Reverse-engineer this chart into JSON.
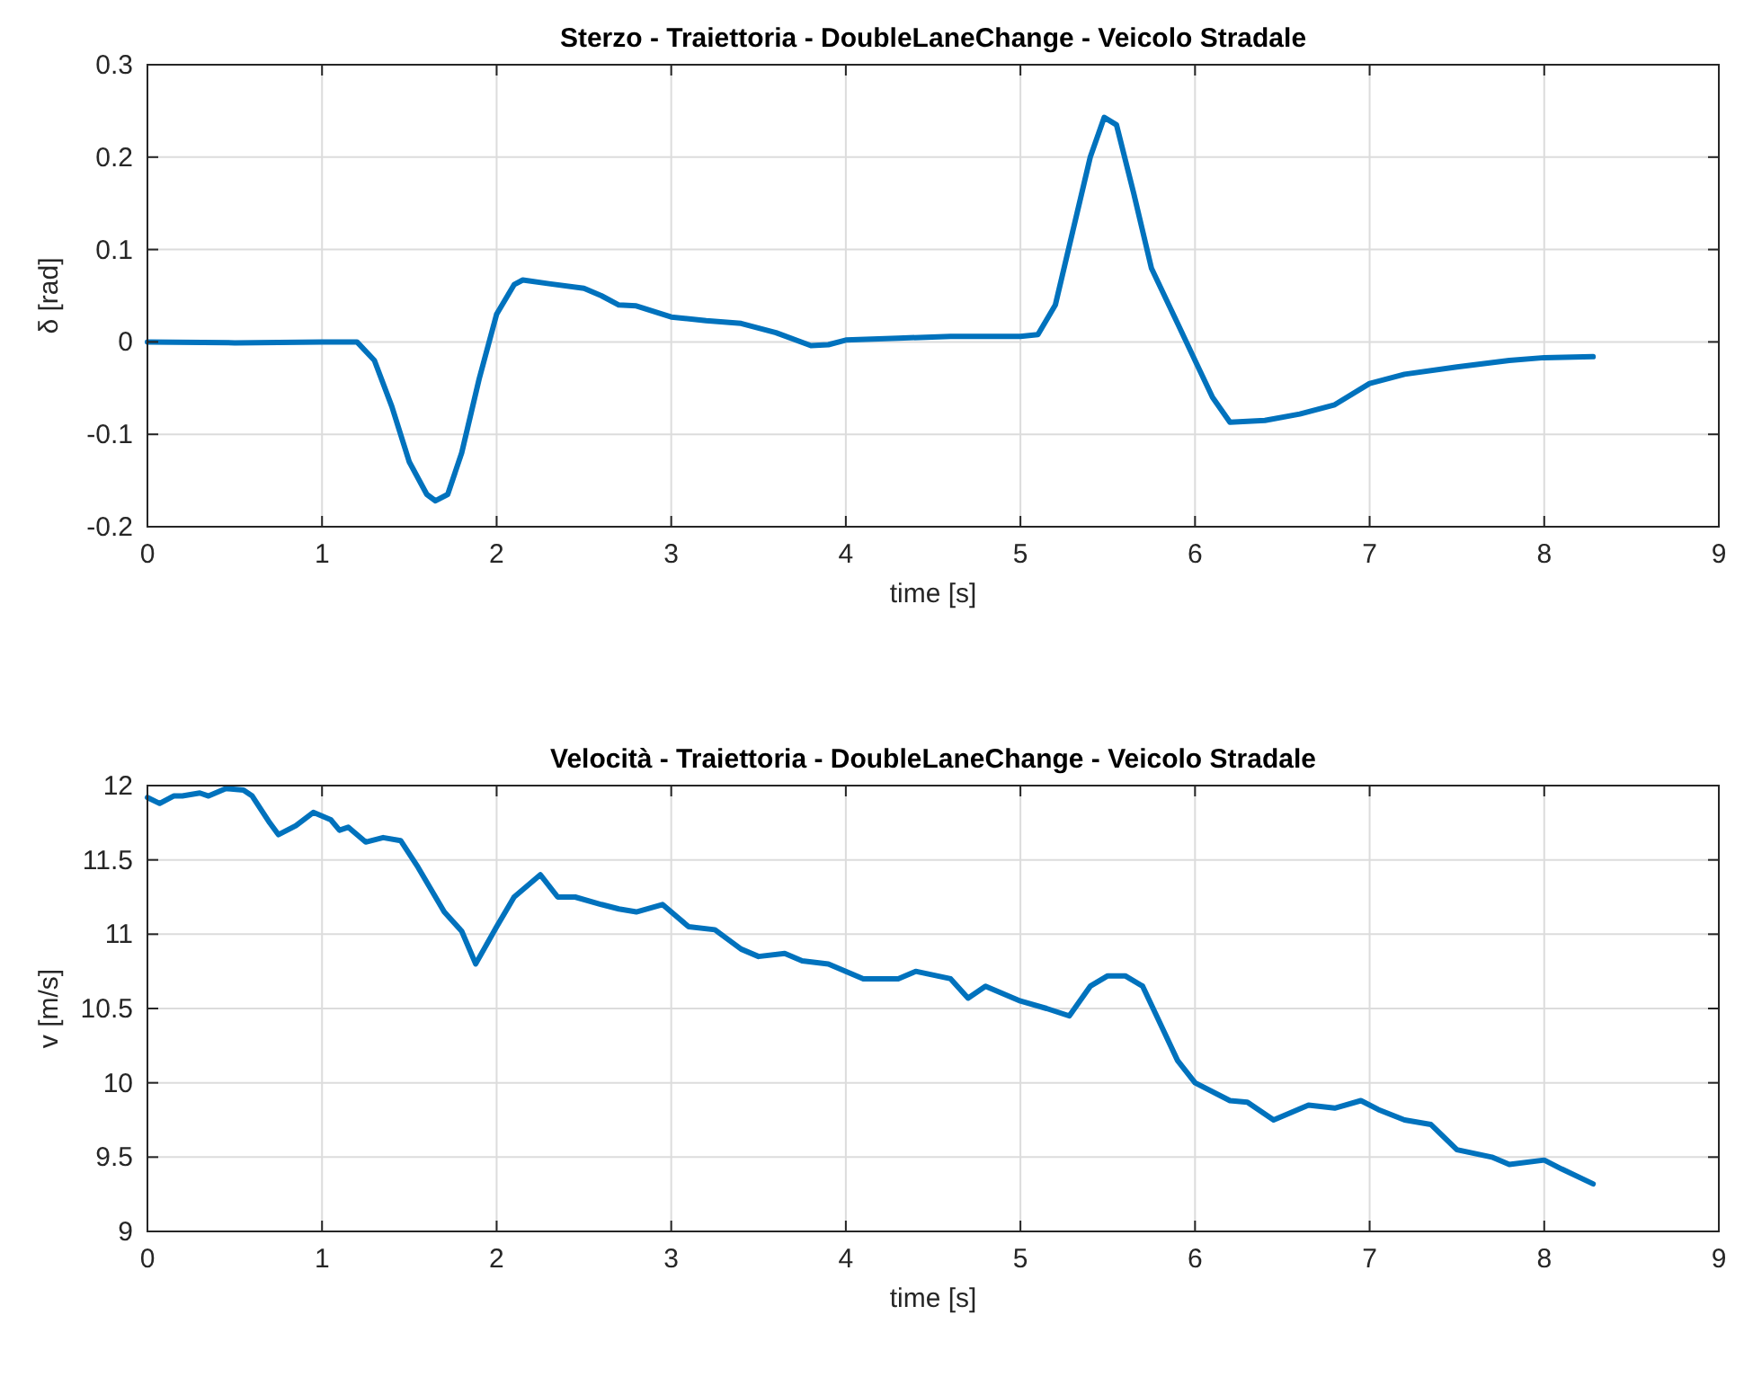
{
  "chart_data": [
    {
      "type": "line",
      "title": "Sterzo - Traiettoria - DoubleLaneChange - Veicolo Stradale",
      "xlabel": "time [s]",
      "ylabel": "δ [rad]",
      "xlim": [
        0,
        9
      ],
      "xticks": [
        0,
        1,
        2,
        3,
        4,
        5,
        6,
        7,
        8,
        9
      ],
      "ylim": [
        -0.2,
        0.3
      ],
      "yticks": [
        -0.2,
        -0.1,
        0,
        0.1,
        0.2,
        0.3
      ],
      "grid": true,
      "x": [
        0,
        0.5,
        1,
        1.2,
        1.3,
        1.4,
        1.5,
        1.6,
        1.65,
        1.72,
        1.8,
        1.9,
        2.0,
        2.1,
        2.15,
        2.3,
        2.5,
        2.6,
        2.7,
        2.8,
        3.0,
        3.2,
        3.4,
        3.6,
        3.8,
        3.9,
        4.0,
        4.3,
        4.6,
        5.0,
        5.1,
        5.2,
        5.3,
        5.4,
        5.48,
        5.55,
        5.65,
        5.75,
        5.9,
        6.0,
        6.1,
        6.2,
        6.4,
        6.6,
        6.8,
        7.0,
        7.2,
        7.5,
        7.8,
        8.0,
        8.28
      ],
      "series": [
        {
          "color": "#0072bd",
          "values": [
            0,
            -0.001,
            0,
            0,
            -0.02,
            -0.07,
            -0.13,
            -0.165,
            -0.172,
            -0.165,
            -0.12,
            -0.04,
            0.03,
            0.062,
            0.067,
            0.063,
            0.058,
            0.05,
            0.04,
            0.039,
            0.027,
            0.023,
            0.02,
            0.01,
            -0.004,
            -0.003,
            0.002,
            0.004,
            0.006,
            0.006,
            0.008,
            0.04,
            0.12,
            0.2,
            0.243,
            0.235,
            0.16,
            0.08,
            0.02,
            -0.02,
            -0.06,
            -0.087,
            -0.085,
            -0.078,
            -0.068,
            -0.045,
            -0.035,
            -0.027,
            -0.02,
            -0.017,
            -0.016
          ]
        }
      ]
    },
    {
      "type": "line",
      "title": "Velocità - Traiettoria - DoubleLaneChange - Veicolo Stradale",
      "xlabel": "time [s]",
      "ylabel": "v [m/s]",
      "xlim": [
        0,
        9
      ],
      "xticks": [
        0,
        1,
        2,
        3,
        4,
        5,
        6,
        7,
        8,
        9
      ],
      "ylim": [
        9,
        12
      ],
      "yticks": [
        9,
        9.5,
        10,
        10.5,
        11,
        11.5,
        12
      ],
      "grid": true,
      "x": [
        0,
        0.07,
        0.15,
        0.2,
        0.3,
        0.35,
        0.45,
        0.55,
        0.6,
        0.7,
        0.75,
        0.85,
        0.95,
        1.05,
        1.1,
        1.15,
        1.25,
        1.35,
        1.45,
        1.55,
        1.7,
        1.8,
        1.88,
        2.0,
        2.1,
        2.25,
        2.35,
        2.45,
        2.6,
        2.7,
        2.8,
        2.95,
        3.1,
        3.25,
        3.4,
        3.5,
        3.65,
        3.75,
        3.9,
        4.0,
        4.1,
        4.3,
        4.4,
        4.6,
        4.7,
        4.8,
        5.0,
        5.15,
        5.28,
        5.4,
        5.5,
        5.6,
        5.7,
        5.8,
        5.9,
        6.0,
        6.2,
        6.3,
        6.45,
        6.65,
        6.8,
        6.95,
        7.05,
        7.2,
        7.35,
        7.5,
        7.7,
        7.8,
        8.0,
        8.1,
        8.28
      ],
      "series": [
        {
          "color": "#0072bd",
          "values": [
            11.92,
            11.88,
            11.93,
            11.93,
            11.95,
            11.93,
            11.98,
            11.97,
            11.93,
            11.75,
            11.67,
            11.73,
            11.82,
            11.77,
            11.7,
            11.72,
            11.62,
            11.65,
            11.63,
            11.45,
            11.15,
            11.02,
            10.8,
            11.05,
            11.25,
            11.4,
            11.25,
            11.25,
            11.2,
            11.17,
            11.15,
            11.2,
            11.05,
            11.03,
            10.9,
            10.85,
            10.87,
            10.82,
            10.8,
            10.75,
            10.7,
            10.7,
            10.75,
            10.7,
            10.57,
            10.65,
            10.55,
            10.5,
            10.45,
            10.65,
            10.72,
            10.72,
            10.65,
            10.4,
            10.15,
            10.0,
            9.88,
            9.87,
            9.75,
            9.85,
            9.83,
            9.88,
            9.82,
            9.75,
            9.72,
            9.55,
            9.5,
            9.45,
            9.48,
            9.42,
            9.32
          ]
        }
      ]
    }
  ]
}
